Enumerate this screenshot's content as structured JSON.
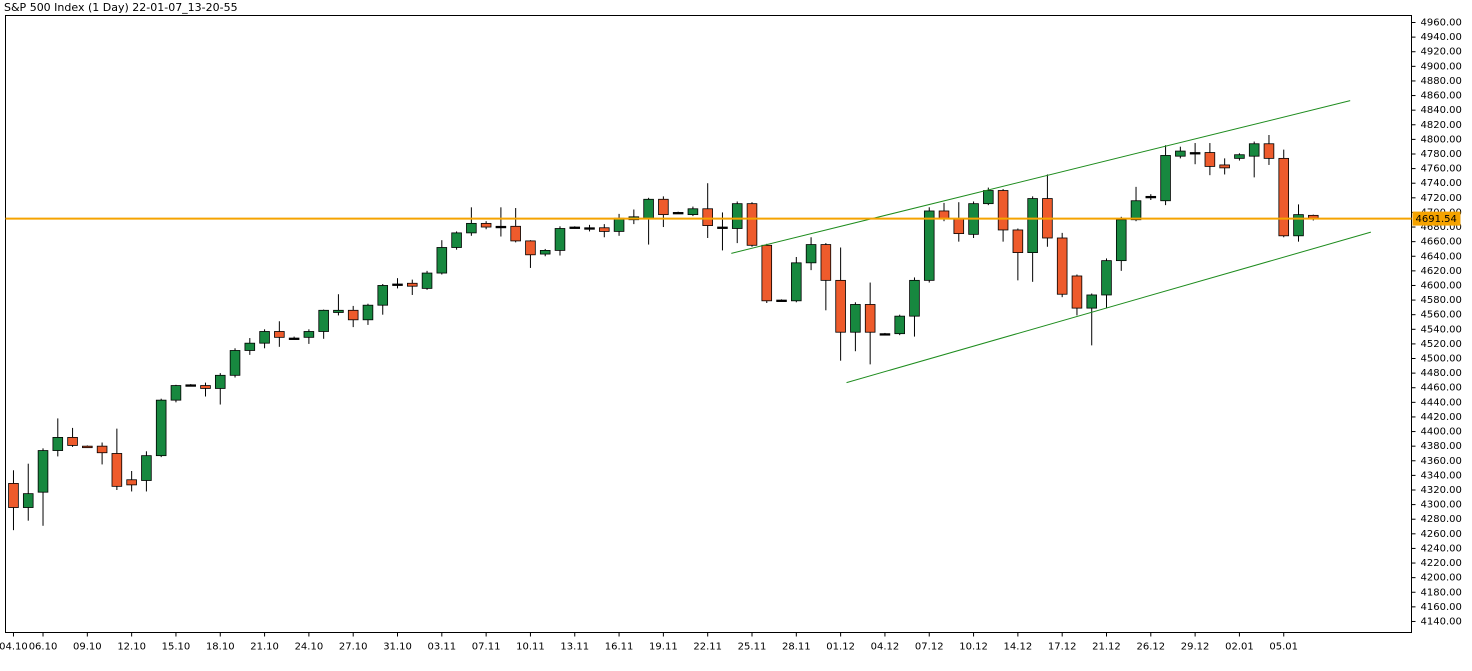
{
  "chart_data": {
    "type": "candlestick",
    "title": "S&P 500 Index (1 Day) 22-01-07_13-20-55",
    "categories": [
      "04.10",
      null,
      "06.10",
      null,
      null,
      "09.10",
      null,
      null,
      "12.10",
      null,
      null,
      "15.10",
      null,
      null,
      "18.10",
      null,
      null,
      "21.10",
      null,
      null,
      "24.10",
      null,
      null,
      "27.10",
      null,
      null,
      "31.10",
      null,
      null,
      "03.11",
      null,
      null,
      "07.11",
      null,
      null,
      "10.11",
      null,
      null,
      "13.11",
      null,
      null,
      "16.11",
      null,
      null,
      "19.11",
      null,
      null,
      "22.11",
      null,
      null,
      "25.11",
      null,
      null,
      "28.11",
      null,
      null,
      "01.12",
      null,
      null,
      "04.12",
      null,
      null,
      "07.12",
      null,
      null,
      "10.12",
      null,
      null,
      "14.12",
      null,
      null,
      "17.12",
      null,
      null,
      "21.12",
      null,
      null,
      "26.12",
      null,
      null,
      "29.12",
      null,
      null,
      "02.01",
      null,
      null,
      "05.01",
      null,
      null
    ],
    "open": [
      4329,
      4296,
      4317,
      4374,
      4392,
      4380,
      4380,
      4370,
      4334,
      4333,
      4367,
      4443,
      4464,
      4463,
      4459,
      4477,
      4511,
      4521,
      4537,
      4528,
      4529,
      4537,
      4563,
      4566,
      4553,
      4573,
      4602,
      4603,
      4596,
      4617,
      4652,
      4672,
      4685,
      4681,
      4681,
      4661,
      4643,
      4648,
      4680,
      4679,
      4679,
      4674,
      4690,
      4692,
      4718,
      4700,
      4697,
      4705,
      4680,
      4678,
      4712,
      4655,
      4580,
      4579,
      4631,
      4656,
      4607,
      4536,
      4574,
      4534,
      4534,
      4558,
      4607,
      4702,
      4691,
      4670,
      4712,
      4730,
      4676,
      4645,
      4719,
      4665,
      4613,
      4569,
      4587,
      4634,
      4690,
      4722,
      4716,
      4777,
      4782,
      4782,
      4765,
      4774,
      4777,
      4794,
      4774,
      4668,
      4696
    ],
    "high": [
      4347,
      4356,
      4377,
      4418,
      4405,
      4381,
      4385,
      4404,
      4346,
      4373,
      4445,
      4464,
      4465,
      4467,
      4480,
      4514,
      4528,
      4540,
      4551,
      4530,
      4540,
      4567,
      4588,
      4572,
      4575,
      4602,
      4610,
      4608,
      4620,
      4662,
      4674,
      4707,
      4688,
      4707,
      4706,
      4662,
      4650,
      4681,
      4681,
      4683,
      4684,
      4698,
      4704,
      4720,
      4722,
      4701,
      4708,
      4740,
      4700,
      4715,
      4714,
      4657,
      4581,
      4639,
      4666,
      4658,
      4652,
      4577,
      4604,
      4535,
      4560,
      4611,
      4707,
      4713,
      4714,
      4715,
      4734,
      4732,
      4678,
      4722,
      4752,
      4672,
      4615,
      4589,
      4637,
      4694,
      4735,
      4725,
      4792,
      4790,
      4795,
      4795,
      4774,
      4781,
      4797,
      4806,
      4786,
      4711,
      4697
    ],
    "low": [
      4265,
      4278,
      4271,
      4366,
      4379,
      4378,
      4355,
      4320,
      4318,
      4318,
      4365,
      4440,
      4463,
      4448,
      4437,
      4474,
      4505,
      4514,
      4516,
      4527,
      4520,
      4527,
      4559,
      4543,
      4546,
      4560,
      4596,
      4587,
      4594,
      4615,
      4649,
      4668,
      4677,
      4667,
      4659,
      4624,
      4640,
      4641,
      4679,
      4674,
      4666,
      4668,
      4684,
      4656,
      4680,
      4699,
      4695,
      4665,
      4648,
      4658,
      4653,
      4576,
      4579,
      4577,
      4621,
      4566,
      4497,
      4510,
      4492,
      4533,
      4532,
      4530,
      4604,
      4688,
      4660,
      4665,
      4710,
      4660,
      4607,
      4605,
      4653,
      4584,
      4559,
      4518,
      4569,
      4620,
      4688,
      4717,
      4710,
      4774,
      4766,
      4751,
      4752,
      4771,
      4748,
      4765,
      4666,
      4660,
      4689
    ],
    "close": [
      4296,
      4315,
      4374,
      4392,
      4381,
      4379,
      4371,
      4325,
      4327,
      4367,
      4443,
      4463,
      4464,
      4459,
      4477,
      4511,
      4521,
      4537,
      4529,
      4528,
      4537,
      4566,
      4566,
      4553,
      4573,
      4600,
      4602,
      4599,
      4617,
      4652,
      4672,
      4685,
      4680,
      4681,
      4661,
      4642,
      4648,
      4678,
      4680,
      4679,
      4674,
      4692,
      4694,
      4718,
      4697,
      4700,
      4705,
      4682,
      4680,
      4712,
      4655,
      4579,
      4580,
      4631,
      4656,
      4607,
      4536,
      4574,
      4536,
      4534,
      4558,
      4607,
      4702,
      4691,
      4671,
      4712,
      4730,
      4676,
      4645,
      4719,
      4665,
      4588,
      4569,
      4587,
      4634,
      4690,
      4716,
      4722,
      4778,
      4784,
      4782,
      4763,
      4761,
      4779,
      4794,
      4774,
      4668,
      4697,
      4692
    ],
    "up_color": "#17883f",
    "down_color": "#ee5b2c",
    "flat_color": "#000000",
    "price_line": 4691.54,
    "price_line_color": "#f5a300",
    "trendlines": [
      {
        "x": [
          48.6,
          90.5
        ],
        "y": [
          4644,
          4853
        ],
        "color": "#1e8c1e"
      },
      {
        "x": [
          56.4,
          91.9
        ],
        "y": [
          4467,
          4673
        ],
        "color": "#1e8c1e"
      }
    ],
    "xlim": [
      -0.54,
      94.65
    ],
    "ylim": [
      4124.9,
      4969.6
    ],
    "yticks": [
      {
        "value": 4140,
        "label": "4140.00"
      },
      {
        "value": 4160,
        "label": "4160.00"
      },
      {
        "value": 4180,
        "label": "4180.00"
      },
      {
        "value": 4200,
        "label": "4200.00"
      },
      {
        "value": 4220,
        "label": "4220.00"
      },
      {
        "value": 4240,
        "label": "4240.00"
      },
      {
        "value": 4260,
        "label": "4260.00"
      },
      {
        "value": 4280,
        "label": "4280.00"
      },
      {
        "value": 4300,
        "label": "4300.00"
      },
      {
        "value": 4320,
        "label": "4320.00"
      },
      {
        "value": 4340,
        "label": "4340.00"
      },
      {
        "value": 4360,
        "label": "4360.00"
      },
      {
        "value": 4380,
        "label": "4380.00"
      },
      {
        "value": 4400,
        "label": "4400.00"
      },
      {
        "value": 4420,
        "label": "4420.00"
      },
      {
        "value": 4440,
        "label": "4440.00"
      },
      {
        "value": 4460,
        "label": "4460.00"
      },
      {
        "value": 4480,
        "label": "4480.00"
      },
      {
        "value": 4500,
        "label": "4500.00"
      },
      {
        "value": 4520,
        "label": "4520.00"
      },
      {
        "value": 4540,
        "label": "4540.00"
      },
      {
        "value": 4560,
        "label": "4560.00"
      },
      {
        "value": 4580,
        "label": "4580.00"
      },
      {
        "value": 4600,
        "label": "4600.00"
      },
      {
        "value": 4620,
        "label": "4620.00"
      },
      {
        "value": 4640,
        "label": "4640.00"
      },
      {
        "value": 4660,
        "label": "4660.00"
      },
      {
        "value": 4680,
        "label": "4680.00"
      },
      {
        "value": 4700,
        "label": "4700.00"
      },
      {
        "value": 4720,
        "label": "4720.00"
      },
      {
        "value": 4740,
        "label": "4740.00"
      },
      {
        "value": 4760,
        "label": "4760.00"
      },
      {
        "value": 4780,
        "label": "4780.00"
      },
      {
        "value": 4800,
        "label": "4800.00"
      },
      {
        "value": 4820,
        "label": "4820.00"
      },
      {
        "value": 4840,
        "label": "4840.00"
      },
      {
        "value": 4860,
        "label": "4860.00"
      },
      {
        "value": 4880,
        "label": "4880.00"
      },
      {
        "value": 4900,
        "label": "4900.00"
      },
      {
        "value": 4920,
        "label": "4920.00"
      },
      {
        "value": 4940,
        "label": "4940.00"
      },
      {
        "value": 4960,
        "label": "4960.00"
      }
    ]
  }
}
